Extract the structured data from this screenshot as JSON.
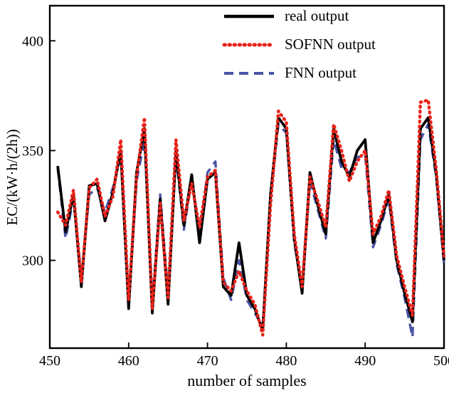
{
  "figure": {
    "background": "#ffffff"
  },
  "chart_data": {
    "type": "line",
    "title": "",
    "xlabel": "number of samples",
    "ylabel": "EC/(kW·h/(2h))",
    "xlim": [
      450,
      500
    ],
    "ylim": [
      260,
      416
    ],
    "xticks": [
      450,
      460,
      470,
      480,
      490,
      500
    ],
    "yticks": [
      300,
      350,
      400
    ],
    "grid": false,
    "legend_position": "top-center-inside",
    "x": [
      451,
      452,
      453,
      454,
      455,
      456,
      457,
      458,
      459,
      460,
      461,
      462,
      463,
      464,
      465,
      466,
      467,
      468,
      469,
      470,
      471,
      472,
      473,
      474,
      475,
      476,
      477,
      478,
      479,
      480,
      481,
      482,
      483,
      484,
      485,
      486,
      487,
      488,
      489,
      490,
      491,
      492,
      493,
      494,
      495,
      496,
      497,
      498,
      499,
      500
    ],
    "series": [
      {
        "name": "real output",
        "color": "#000000",
        "line_style": "solid",
        "values": [
          343,
          313,
          330,
          288,
          334,
          335,
          318,
          331,
          350,
          278,
          340,
          360,
          276,
          328,
          280,
          350,
          316,
          339,
          308,
          337,
          340,
          288,
          284,
          308,
          284,
          278,
          268,
          330,
          365,
          360,
          310,
          285,
          340,
          325,
          312,
          360,
          345,
          338,
          350,
          355,
          308,
          318,
          330,
          300,
          285,
          272,
          360,
          365,
          340,
          300
        ]
      },
      {
        "name": "SOFNN output",
        "color": "#e8231a",
        "line_style": "dotted",
        "values": [
          322,
          316,
          332,
          290,
          333,
          337,
          320,
          329,
          355,
          282,
          338,
          365,
          278,
          326,
          283,
          355,
          318,
          335,
          315,
          338,
          341,
          290,
          286,
          295,
          286,
          280,
          266,
          325,
          368,
          363,
          312,
          288,
          338,
          327,
          315,
          362,
          350,
          336,
          345,
          350,
          312,
          320,
          332,
          302,
          288,
          275,
          372,
          373,
          342,
          302
        ]
      },
      {
        "name": "FNN output",
        "color": "#4a54a5",
        "line_style": "dashed",
        "values": [
          342,
          310,
          328,
          292,
          330,
          333,
          322,
          333,
          348,
          280,
          336,
          355,
          280,
          330,
          285,
          348,
          314,
          337,
          312,
          340,
          345,
          292,
          282,
          300,
          282,
          276,
          270,
          328,
          362,
          358,
          308,
          287,
          336,
          323,
          310,
          355,
          342,
          340,
          347,
          348,
          306,
          316,
          328,
          298,
          283,
          265,
          355,
          362,
          338,
          298
        ]
      }
    ]
  }
}
